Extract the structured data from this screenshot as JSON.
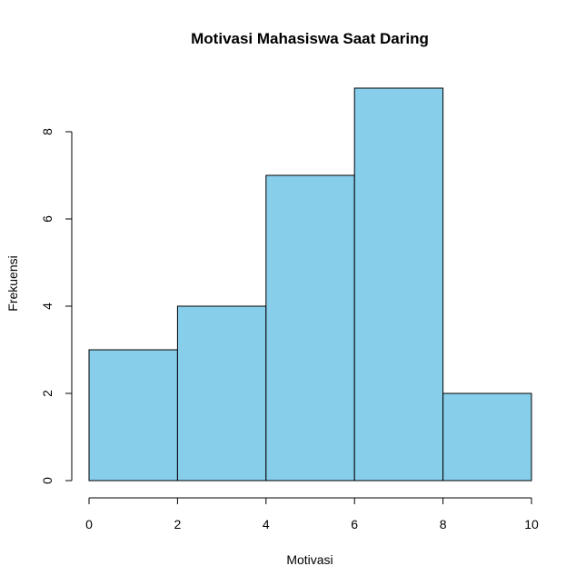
{
  "chart_data": {
    "type": "bar",
    "title": "Motivasi Mahasiswa Saat Daring",
    "xlabel": "Motivasi",
    "ylabel": "Frekuensi",
    "bins": [
      [
        0,
        2
      ],
      [
        2,
        4
      ],
      [
        4,
        6
      ],
      [
        6,
        8
      ],
      [
        8,
        10
      ]
    ],
    "categories": [
      "0-2",
      "2-4",
      "4-6",
      "6-8",
      "8-10"
    ],
    "values": [
      3,
      4,
      7,
      9,
      2
    ],
    "xlim": [
      0,
      10
    ],
    "ylim": [
      0,
      9
    ],
    "x_ticks": [
      0,
      2,
      4,
      6,
      8,
      10
    ],
    "y_ticks": [
      0,
      2,
      4,
      6,
      8
    ],
    "grid": false,
    "legend": "none",
    "bar_color": "#87CEEB",
    "edge_color": "#000000"
  }
}
